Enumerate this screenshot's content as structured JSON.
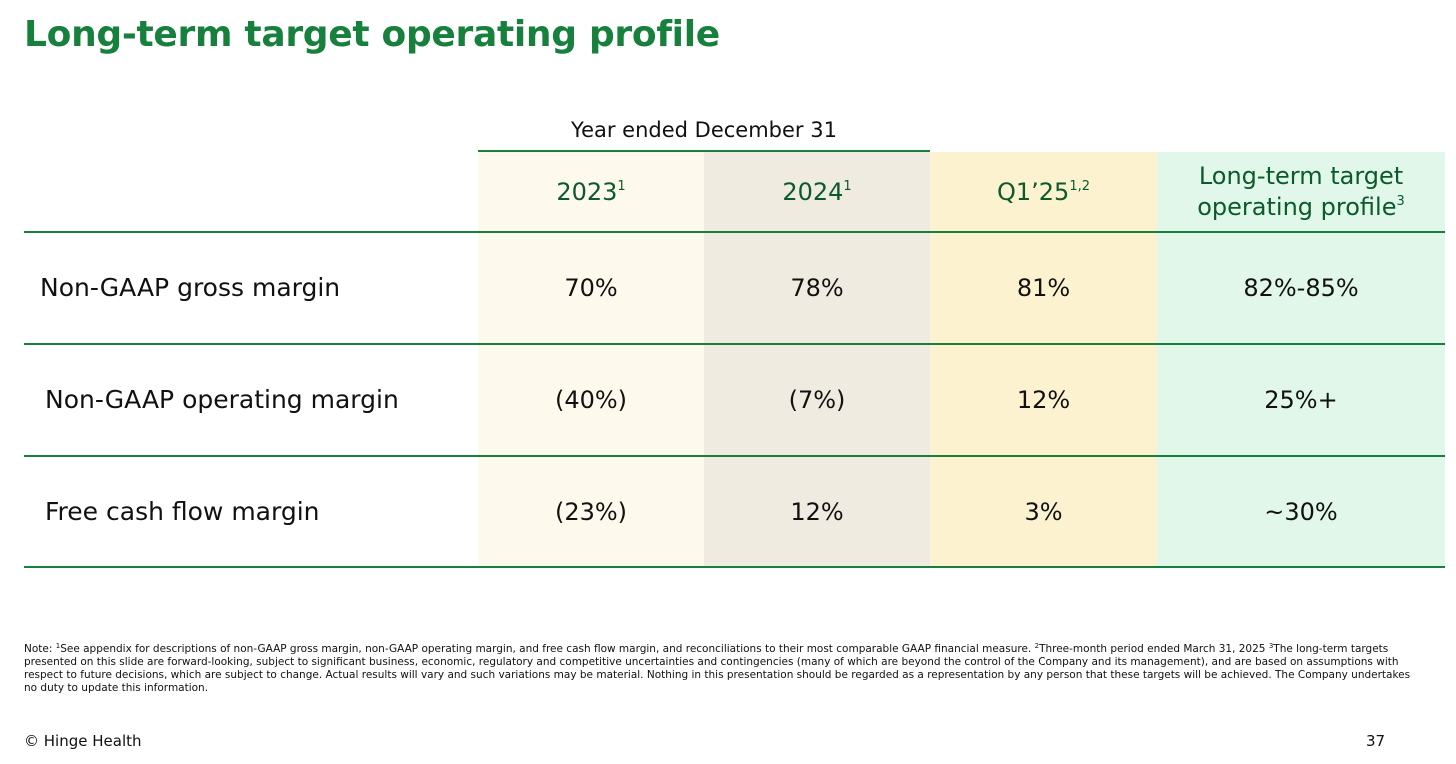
{
  "title": "Long-term target operating profile",
  "group_label": "Year ended December 31",
  "columns": [
    {
      "label": "2023",
      "sup": "1"
    },
    {
      "label": "2024",
      "sup": "1"
    },
    {
      "label": "Q1’25",
      "sup": "1,2"
    },
    {
      "label_line1": "Long-term target",
      "label_line2": "operating profile",
      "sup": "3"
    }
  ],
  "rows": [
    {
      "label": "Non-GAAP gross margin",
      "values": [
        "70%",
        "78%",
        "81%",
        "82%-85%"
      ]
    },
    {
      "label": "Non-GAAP operating margin",
      "values": [
        "(40%)",
        "(7%)",
        "12%",
        "25%+"
      ]
    },
    {
      "label": "Free cash flow margin",
      "values": [
        "(23%)",
        "12%",
        "3%",
        "~30%"
      ]
    }
  ],
  "note": {
    "prefix": "Note: ",
    "sup1": "1",
    "text1": "See appendix for descriptions of non-GAAP gross margin, non-GAAP operating margin, and free cash flow margin, and reconciliations to their most comparable GAAP financial measure. ",
    "sup2": "2",
    "text2": "Three-month period ended March 31, 2025 ",
    "sup3": "3",
    "text3": "The long-term targets presented on this slide are forward-looking, subject to significant business, economic, regulatory and competitive uncertainties and contingencies (many of which are beyond the control of the Company and its management), and are based on assumptions with respect to future decisions, which are subject to change. Actual results will vary and such variations may be material. Nothing in this presentation should be regarded as a representation by any person that these targets will be achieved. The Company undertakes no duty to update this information."
  },
  "footer": {
    "copyright": "© Hinge Health",
    "page_number": "37"
  },
  "colors": {
    "brand_green": "#16803c",
    "col_2023": "#fdf9ec",
    "col_2024": "#f0ebe0",
    "col_q1": "#fcf2d0",
    "col_target": "#e1f7e9"
  }
}
